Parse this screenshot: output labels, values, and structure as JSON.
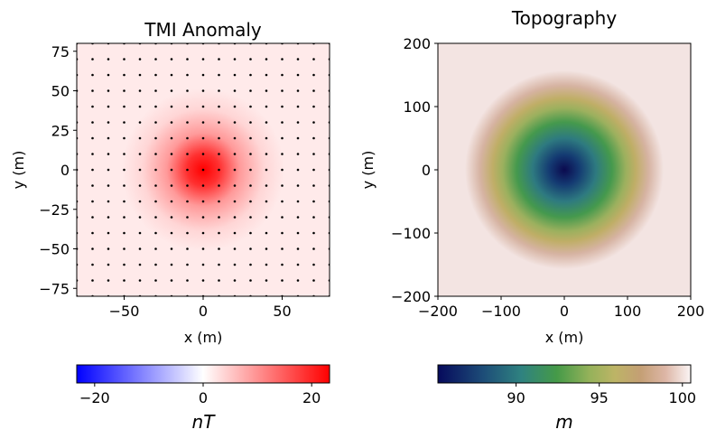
{
  "chart_data": [
    {
      "type": "heatmap",
      "title": "TMI Anomaly",
      "xlabel": "x (m)",
      "ylabel": "y (m)",
      "xlim": [
        -80,
        80
      ],
      "ylim": [
        -80,
        80
      ],
      "xticks": [
        -50,
        0,
        50
      ],
      "yticks": [
        75,
        50,
        25,
        0,
        -25,
        -50,
        -75
      ],
      "xtick_labels": [
        "−50",
        "0",
        "50"
      ],
      "ytick_labels": [
        "75",
        "50",
        "25",
        "0",
        "−25",
        "−50",
        "−75"
      ],
      "receivers": {
        "spacing": 10,
        "range": [
          -80,
          80
        ],
        "marker": "dot",
        "color": "#000000"
      },
      "peak": {
        "x": 0,
        "y": 0,
        "value": 22
      },
      "colormap": "bwr",
      "colorbar": {
        "label": "nT",
        "range": [
          -23.3,
          23.3
        ],
        "ticks": [
          -20,
          0,
          20
        ],
        "tick_labels": [
          "−20",
          "0",
          "20"
        ],
        "orientation": "horizontal",
        "location": "bottom"
      }
    },
    {
      "type": "heatmap",
      "title": "Topography",
      "xlabel": "x (m)",
      "ylabel": "y (m)",
      "xlim": [
        -200,
        200
      ],
      "ylim": [
        -200,
        200
      ],
      "xticks": [
        -200,
        -100,
        0,
        100,
        200
      ],
      "yticks": [
        200,
        100,
        0,
        -100,
        -200
      ],
      "xtick_labels": [
        "−200",
        "−100",
        "0",
        "100",
        "200"
      ],
      "ytick_labels": [
        "200",
        "100",
        "0",
        "−100",
        "−200"
      ],
      "minimum": {
        "x": 0,
        "y": 0,
        "value": 85.3
      },
      "colormap": "gist_earth",
      "colorbar": {
        "label": "m",
        "range": [
          85.3,
          100.5
        ],
        "ticks": [
          90,
          95,
          100
        ],
        "tick_labels": [
          "90",
          "95",
          "100"
        ],
        "orientation": "horizontal",
        "location": "bottom"
      }
    }
  ]
}
